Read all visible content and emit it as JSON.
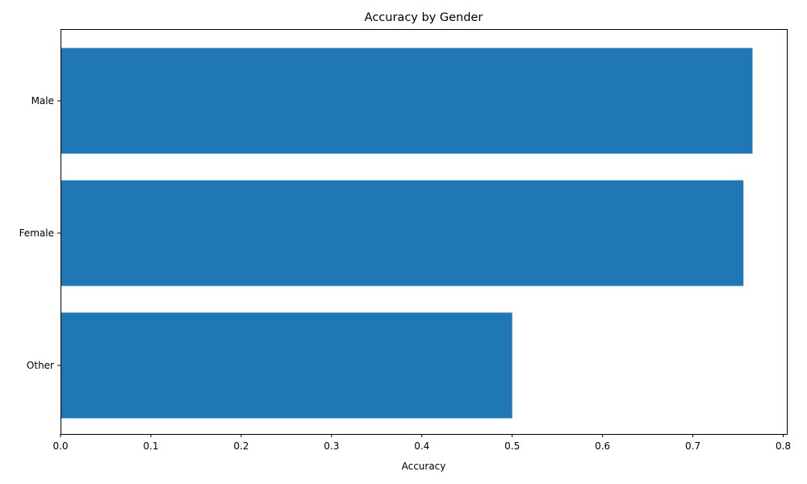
{
  "chart_data": {
    "type": "bar",
    "orientation": "horizontal",
    "title": "Accuracy by Gender",
    "xlabel": "Accuracy",
    "ylabel": "",
    "categories": [
      "Male",
      "Female",
      "Other"
    ],
    "values": [
      0.766,
      0.756,
      0.5
    ],
    "xlim": [
      0,
      0.804
    ],
    "xticks": [
      0.0,
      0.1,
      0.2,
      0.3,
      0.4,
      0.5,
      0.6,
      0.7,
      0.8
    ],
    "xtick_labels": [
      "0.0",
      "0.1",
      "0.2",
      "0.3",
      "0.4",
      "0.5",
      "0.6",
      "0.7",
      "0.8"
    ],
    "grid": false,
    "bar_color": "#1f77b4"
  }
}
